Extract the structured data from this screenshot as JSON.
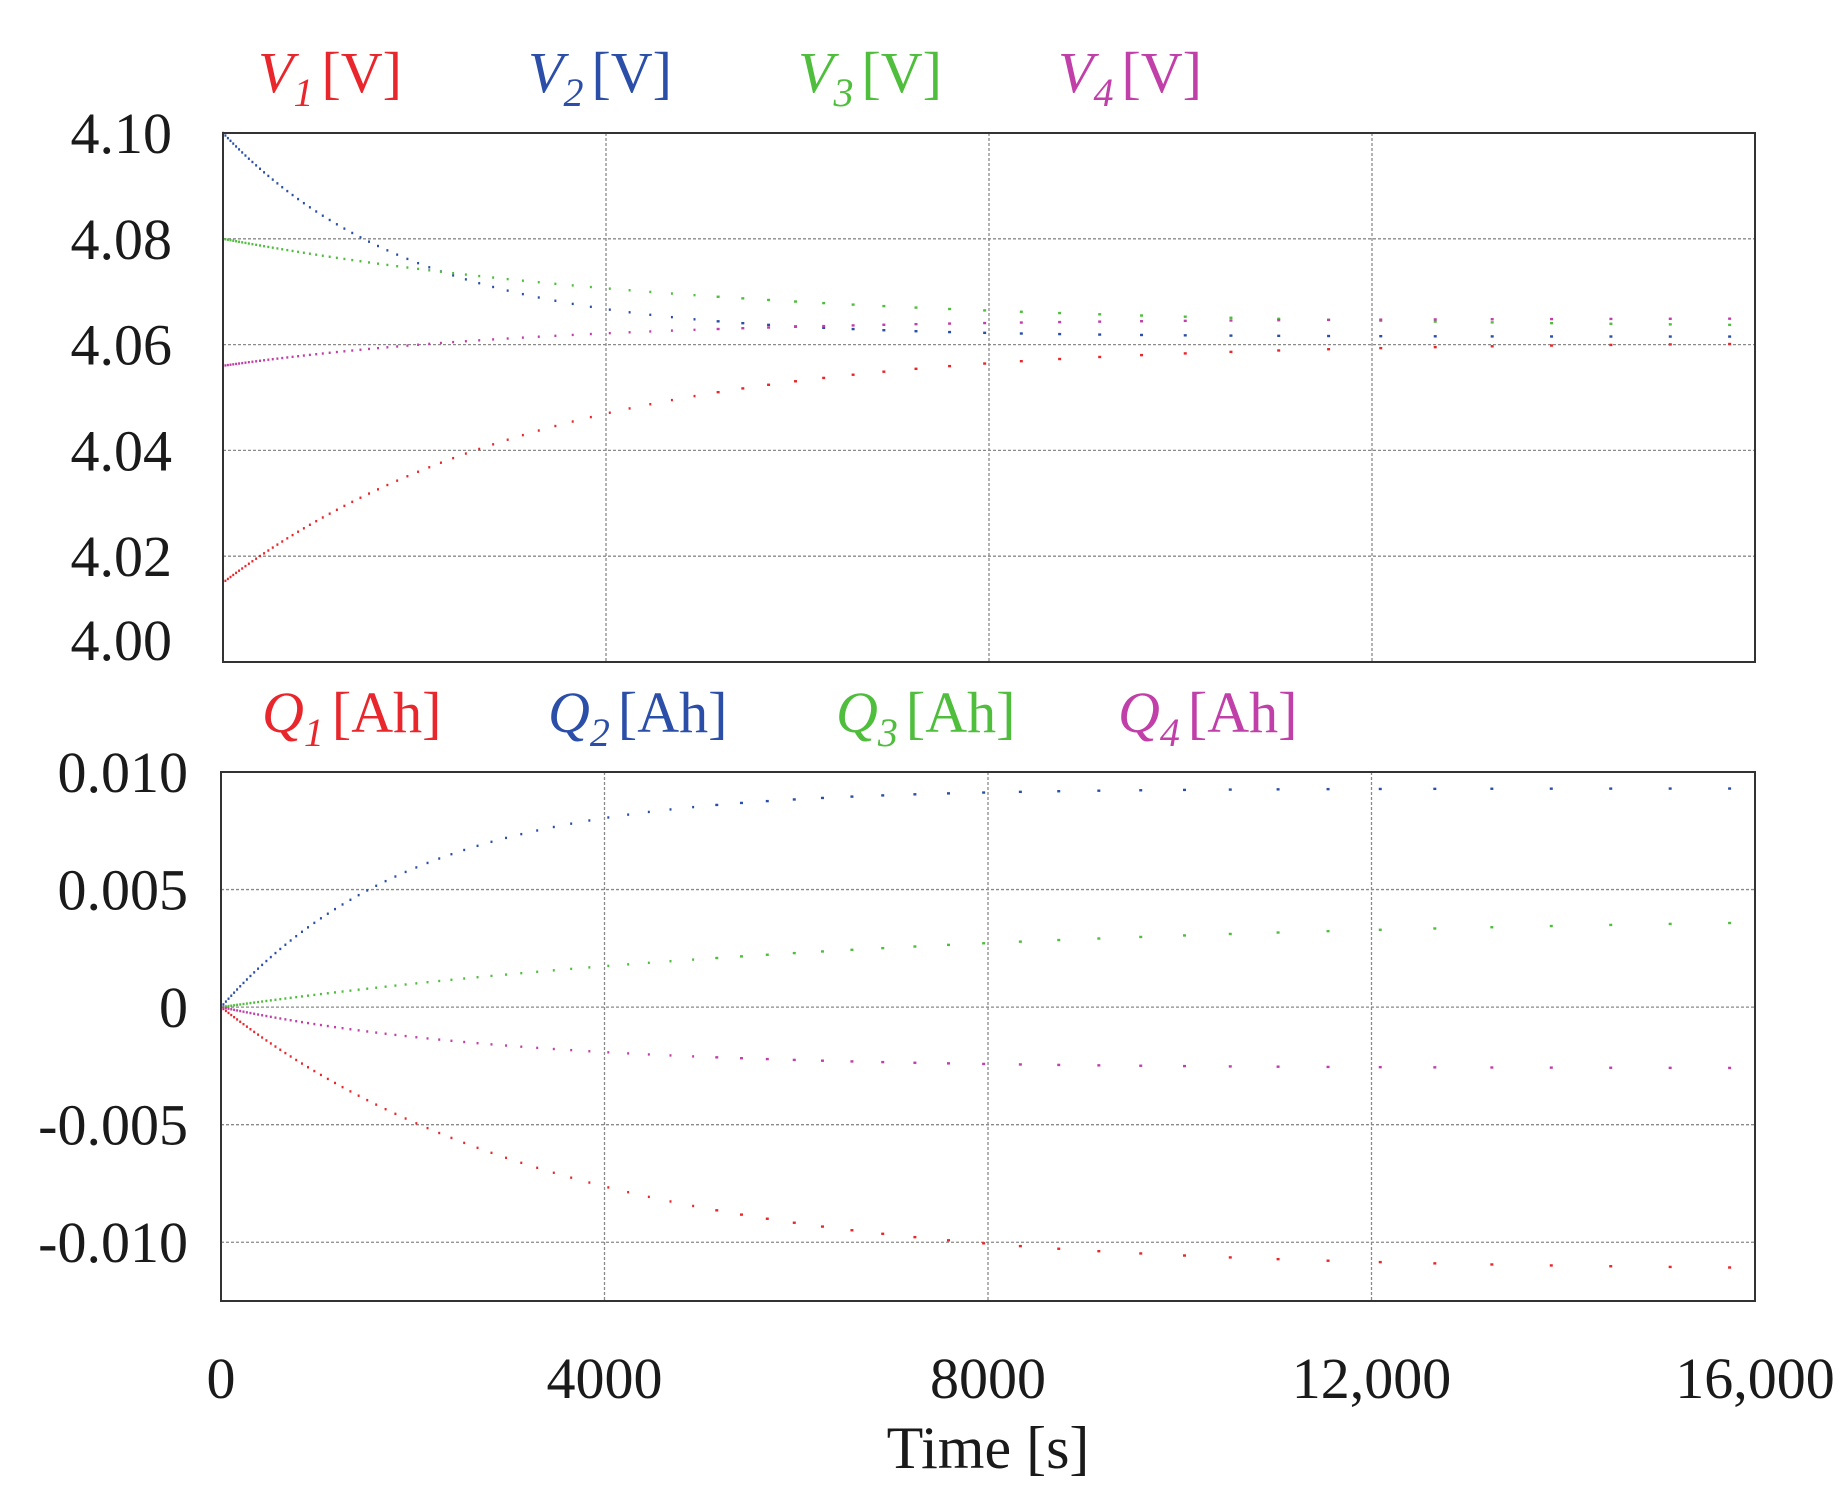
{
  "chart_data": [
    {
      "type": "scatter",
      "panel": "voltage",
      "title": "",
      "xlabel": "",
      "ylabel": "",
      "xlim": [
        0,
        16000
      ],
      "ylim": [
        4.0,
        4.1
      ],
      "x_grid": [
        4000,
        8000,
        12000
      ],
      "y_ticks": [
        4.0,
        4.02,
        4.04,
        4.06,
        4.08,
        4.1
      ],
      "y_tick_labels": [
        "4.00",
        "4.02",
        "4.04",
        "4.06",
        "4.08",
        "4.10"
      ],
      "grid": true,
      "legend_position": "top",
      "series": [
        {
          "name": "V1 [V]",
          "symbol": "V",
          "sub": "1",
          "unit": "[V]",
          "color": "#e8262b",
          "start": 4.015,
          "end": 4.0605,
          "tau": 3300
        },
        {
          "name": "V2 [V]",
          "symbol": "V",
          "sub": "2",
          "unit": "[V]",
          "color": "#2b4fa8",
          "start": 4.1,
          "end": 4.0615,
          "tau": 2000
        },
        {
          "name": "V3 [V]",
          "symbol": "V",
          "sub": "3",
          "unit": "[V]",
          "color": "#4fbe3c",
          "start": 4.08,
          "end": 4.063,
          "tau": 5000
        },
        {
          "name": "V4 [V]",
          "symbol": "V",
          "sub": "4",
          "unit": "[V]",
          "color": "#c13fa9",
          "start": 4.056,
          "end": 4.065,
          "tau": 3500
        }
      ]
    },
    {
      "type": "scatter",
      "panel": "charge",
      "title": "",
      "xlabel": "Time [s]",
      "ylabel": "",
      "xlim": [
        0,
        16000
      ],
      "ylim": [
        -0.0125,
        0.01
      ],
      "x_ticks": [
        0,
        4000,
        8000,
        12000,
        16000
      ],
      "x_tick_labels": [
        "0",
        "4000",
        "8000",
        "12,000",
        "16,000"
      ],
      "y_ticks": [
        -0.01,
        -0.005,
        0,
        0.005,
        0.01
      ],
      "y_tick_labels": [
        "-0.010",
        "-0.005",
        "0",
        "0.005",
        "0.010"
      ],
      "grid": true,
      "legend_position": "top",
      "series": [
        {
          "name": "Q1 [Ah]",
          "symbol": "Q",
          "sub": "1",
          "unit": "[Ah]",
          "color": "#e8262b",
          "start": 0,
          "end": -0.0112,
          "tau": 3500
        },
        {
          "name": "Q2 [Ah]",
          "symbol": "Q",
          "sub": "2",
          "unit": "[Ah]",
          "color": "#2b4fa8",
          "start": 0,
          "end": 0.0093,
          "tau": 2000
        },
        {
          "name": "Q3 [Ah]",
          "symbol": "Q",
          "sub": "3",
          "unit": "[Ah]",
          "color": "#4fbe3c",
          "start": 0,
          "end": 0.004,
          "tau": 7000
        },
        {
          "name": "Q4 [Ah]",
          "symbol": "Q",
          "sub": "4",
          "unit": "[Ah]",
          "color": "#c13fa9",
          "start": 0,
          "end": -0.0026,
          "tau": 3000
        }
      ]
    }
  ]
}
